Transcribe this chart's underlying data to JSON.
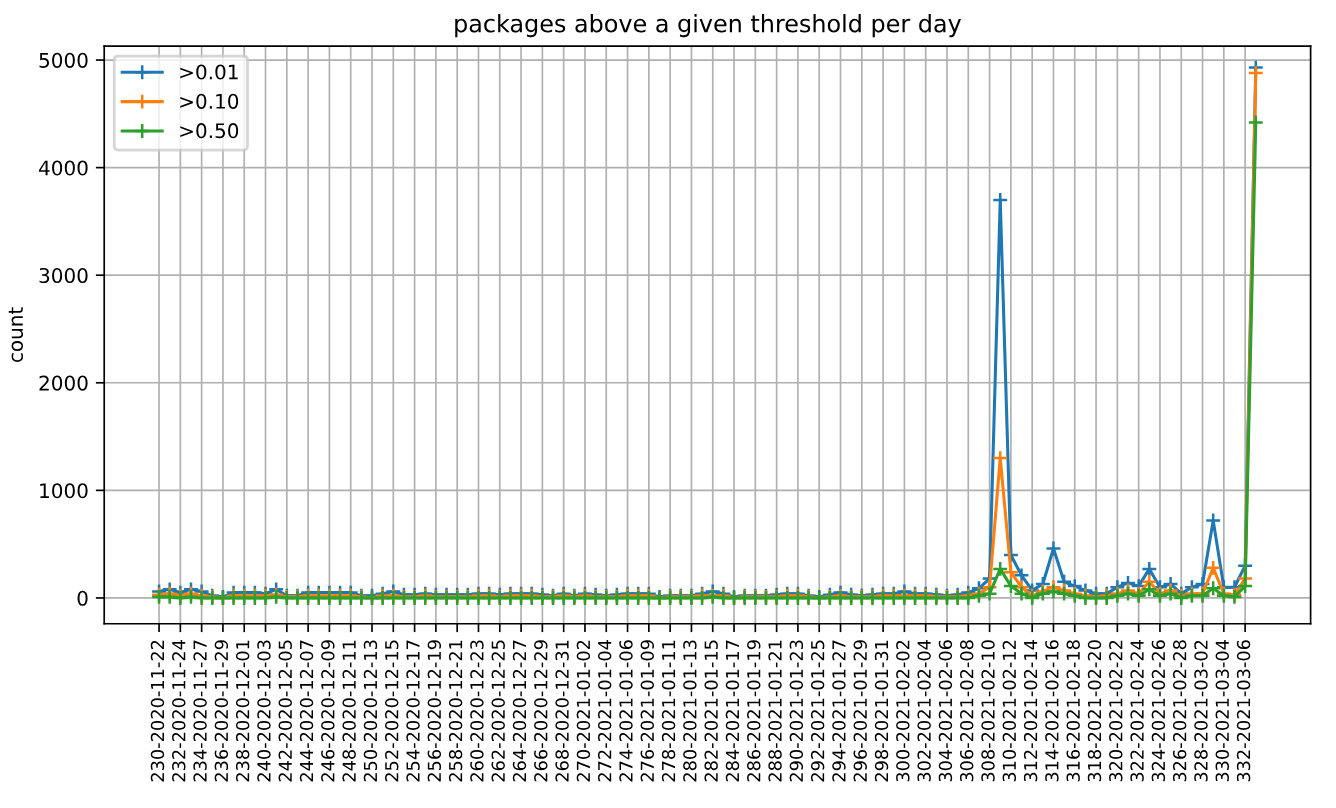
{
  "chart_data": {
    "type": "line",
    "title": "packages above a given threshold per day",
    "ylabel": "count",
    "categories": [
      "230-2020-11-22",
      null,
      "232-2020-11-24",
      null,
      "234-2020-11-27",
      null,
      "236-2020-11-29",
      null,
      "238-2020-12-01",
      null,
      "240-2020-12-03",
      null,
      "242-2020-12-05",
      null,
      "244-2020-12-07",
      null,
      "246-2020-12-09",
      null,
      "248-2020-12-11",
      null,
      "250-2020-12-13",
      null,
      "252-2020-12-15",
      null,
      "254-2020-12-17",
      null,
      "256-2020-12-19",
      null,
      "258-2020-12-21",
      null,
      "260-2020-12-23",
      null,
      "262-2020-12-25",
      null,
      "264-2020-12-27",
      null,
      "266-2020-12-29",
      null,
      "268-2020-12-31",
      null,
      "270-2021-01-02",
      null,
      "272-2021-01-04",
      null,
      "274-2021-01-06",
      null,
      "276-2021-01-09",
      null,
      "278-2021-01-11",
      null,
      "280-2021-01-13",
      null,
      "282-2021-01-15",
      null,
      "284-2021-01-17",
      null,
      "286-2021-01-19",
      null,
      "288-2021-01-21",
      null,
      "290-2021-01-23",
      null,
      "292-2021-01-25",
      null,
      "294-2021-01-27",
      null,
      "296-2021-01-29",
      null,
      "298-2021-01-31",
      null,
      "300-2021-02-02",
      null,
      "302-2021-02-04",
      null,
      "304-2021-02-06",
      null,
      "306-2021-02-08",
      null,
      "308-2021-02-10",
      null,
      "310-2021-02-12",
      null,
      "312-2021-02-14",
      null,
      "314-2021-02-16",
      null,
      "316-2021-02-18",
      null,
      "318-2021-02-20",
      null,
      "320-2021-02-22",
      null,
      "322-2021-02-24",
      null,
      "324-2021-02-26",
      null,
      "326-2021-02-28",
      null,
      "328-2021-03-02",
      null,
      "330-2021-03-04",
      null,
      "332-2021-03-06",
      null
    ],
    "series": [
      {
        "name": ">0.01",
        "color": "#1f77b4",
        "values": [
          60,
          80,
          50,
          80,
          60,
          20,
          10,
          50,
          50,
          50,
          40,
          80,
          20,
          20,
          50,
          50,
          50,
          50,
          50,
          20,
          20,
          40,
          60,
          30,
          30,
          40,
          30,
          30,
          30,
          30,
          40,
          40,
          30,
          40,
          40,
          40,
          30,
          20,
          40,
          20,
          40,
          30,
          20,
          30,
          40,
          40,
          40,
          10,
          20,
          20,
          20,
          40,
          60,
          40,
          10,
          20,
          20,
          20,
          30,
          40,
          40,
          20,
          10,
          30,
          50,
          30,
          20,
          30,
          40,
          40,
          60,
          40,
          40,
          30,
          20,
          30,
          50,
          90,
          180,
          3700,
          400,
          210,
          70,
          130,
          460,
          150,
          110,
          70,
          40,
          40,
          100,
          140,
          110,
          270,
          100,
          130,
          40,
          100,
          130,
          720,
          100,
          100,
          300,
          4930
        ]
      },
      {
        "name": ">0.10",
        "color": "#ff7f0e",
        "values": [
          30,
          40,
          20,
          40,
          20,
          10,
          0,
          20,
          20,
          20,
          20,
          30,
          10,
          10,
          20,
          20,
          20,
          20,
          20,
          10,
          0,
          20,
          20,
          10,
          10,
          20,
          10,
          10,
          10,
          10,
          20,
          20,
          10,
          20,
          20,
          20,
          10,
          10,
          20,
          10,
          20,
          10,
          10,
          10,
          20,
          20,
          20,
          0,
          10,
          10,
          10,
          20,
          20,
          20,
          0,
          10,
          10,
          10,
          10,
          20,
          20,
          10,
          0,
          10,
          20,
          10,
          10,
          10,
          20,
          20,
          20,
          20,
          20,
          10,
          10,
          10,
          20,
          40,
          100,
          1300,
          240,
          100,
          20,
          60,
          100,
          70,
          40,
          20,
          10,
          20,
          40,
          70,
          40,
          150,
          40,
          70,
          20,
          40,
          40,
          280,
          40,
          30,
          180,
          4880
        ]
      },
      {
        "name": ">0.50",
        "color": "#2ca02c",
        "values": [
          10,
          10,
          0,
          10,
          0,
          0,
          0,
          0,
          0,
          0,
          0,
          10,
          0,
          0,
          0,
          0,
          0,
          0,
          0,
          0,
          0,
          0,
          0,
          0,
          0,
          0,
          0,
          0,
          0,
          0,
          0,
          0,
          0,
          0,
          0,
          0,
          0,
          0,
          0,
          0,
          0,
          0,
          0,
          0,
          0,
          0,
          0,
          0,
          0,
          0,
          0,
          0,
          10,
          0,
          0,
          0,
          0,
          0,
          0,
          0,
          0,
          0,
          0,
          0,
          0,
          0,
          0,
          0,
          0,
          0,
          0,
          0,
          0,
          0,
          0,
          0,
          0,
          20,
          40,
          270,
          110,
          40,
          0,
          40,
          60,
          40,
          20,
          0,
          0,
          0,
          20,
          40,
          20,
          80,
          20,
          40,
          0,
          20,
          20,
          90,
          20,
          10,
          110,
          4420
        ]
      }
    ],
    "ylim": [
      -240,
      5130
    ],
    "yticks": [
      0,
      1000,
      2000,
      3000,
      4000,
      5000
    ],
    "grid": true,
    "legend": "top left",
    "marker": "cross",
    "line_style": "solid"
  }
}
